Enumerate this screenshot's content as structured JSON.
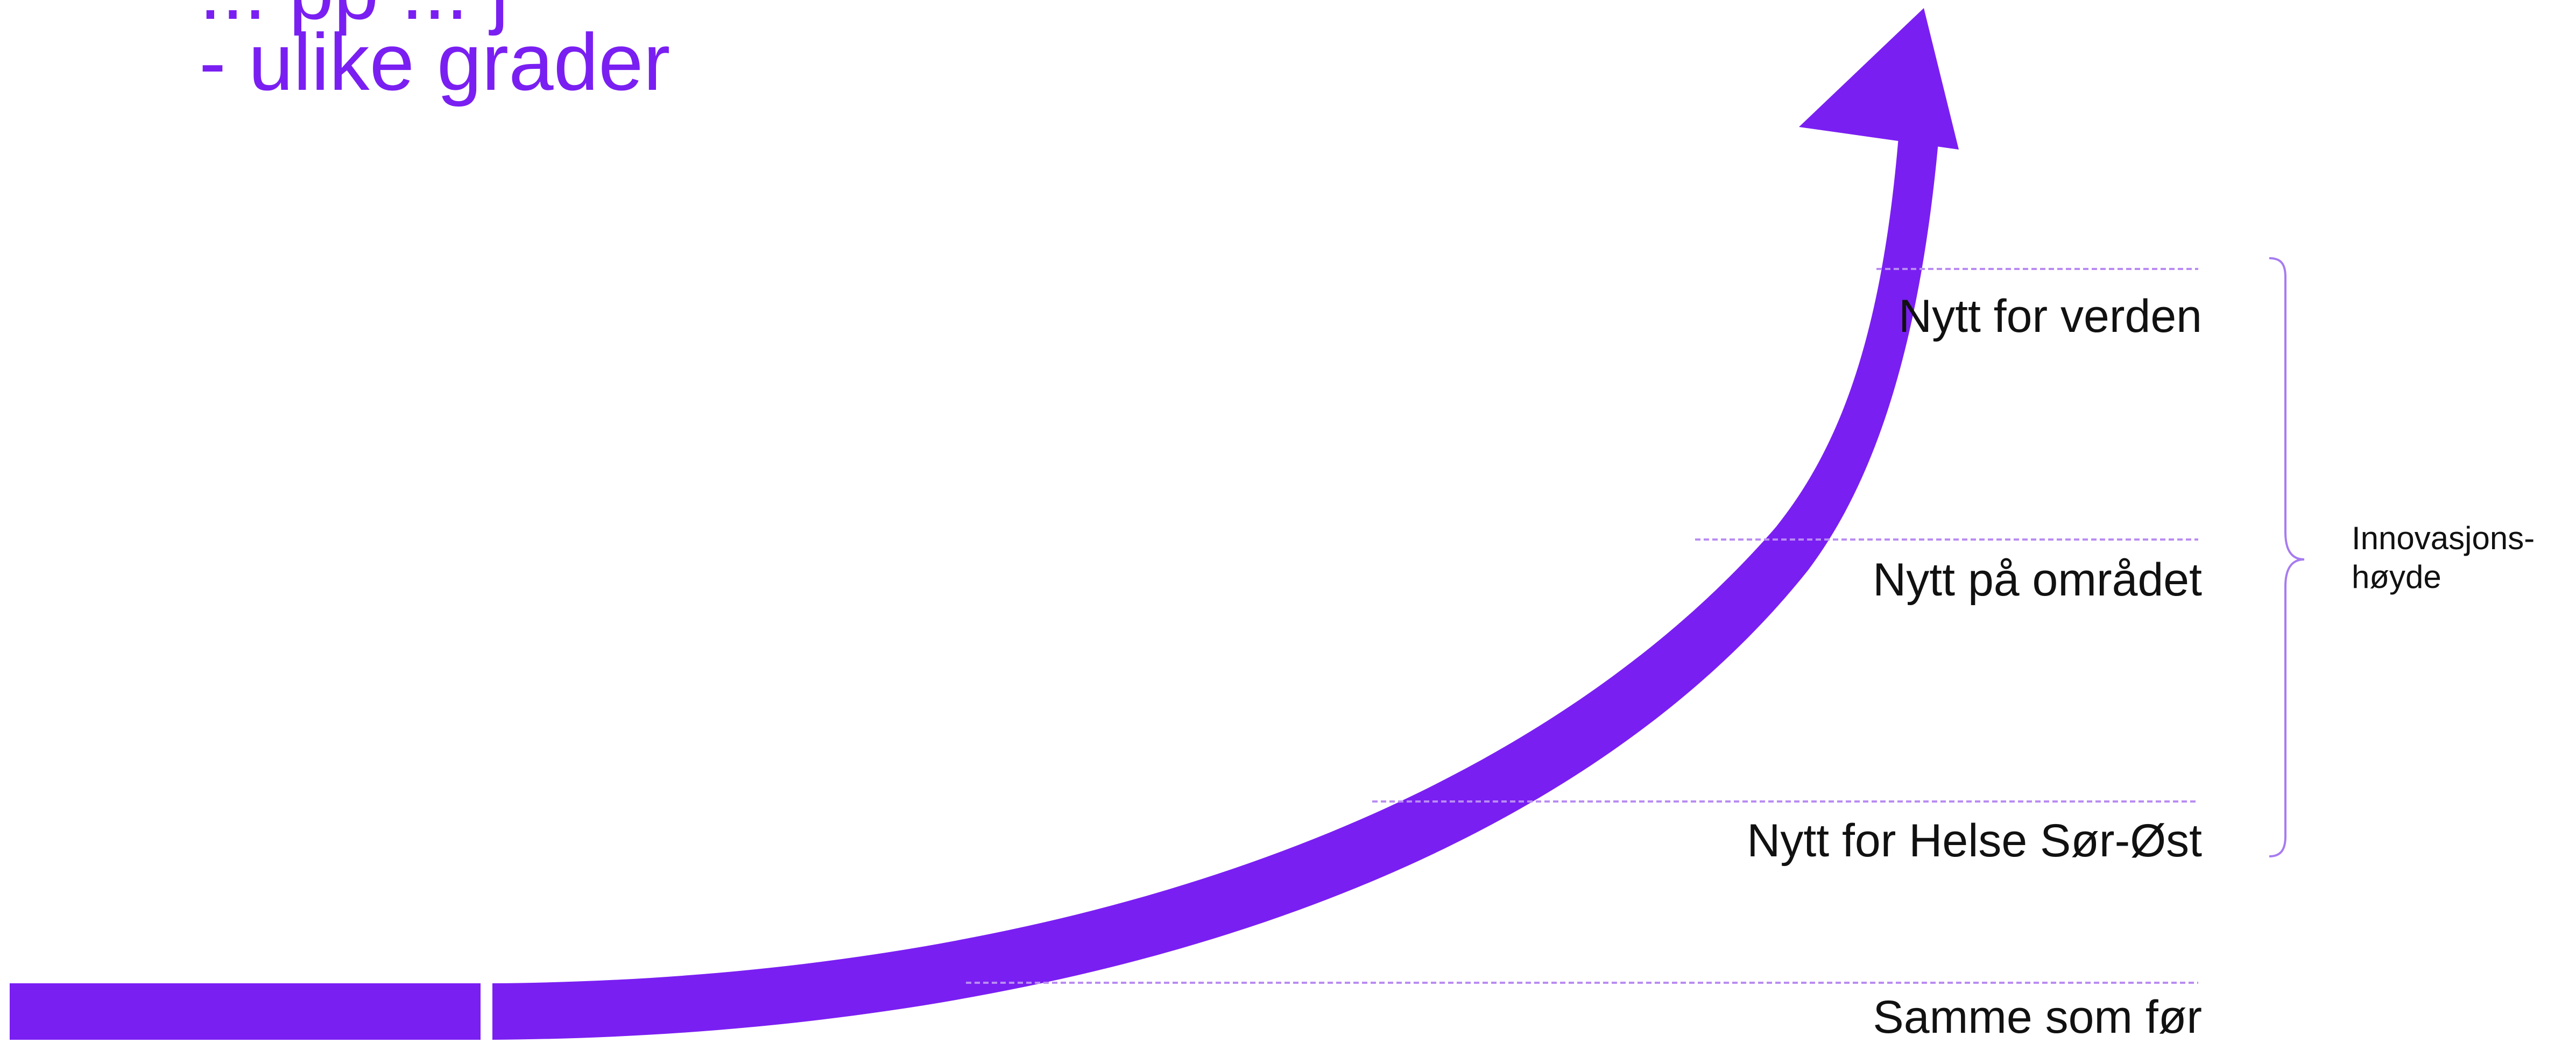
{
  "title": {
    "line1_partial": "... pp ... j",
    "line2": "- ulike grader"
  },
  "levels": [
    {
      "label": "Nytt for verden"
    },
    {
      "label": "Nytt på området"
    },
    {
      "label": "Nytt for Helse Sør-Øst"
    },
    {
      "label": "Samme som før"
    }
  ],
  "bracket_label": {
    "line1": "Innovasjons-",
    "line2": "høyde"
  },
  "colors": {
    "accent": "#7A1FF2",
    "dashed_line": "#B98CF2",
    "bracket": "#A77BF0",
    "text": "#111111"
  }
}
